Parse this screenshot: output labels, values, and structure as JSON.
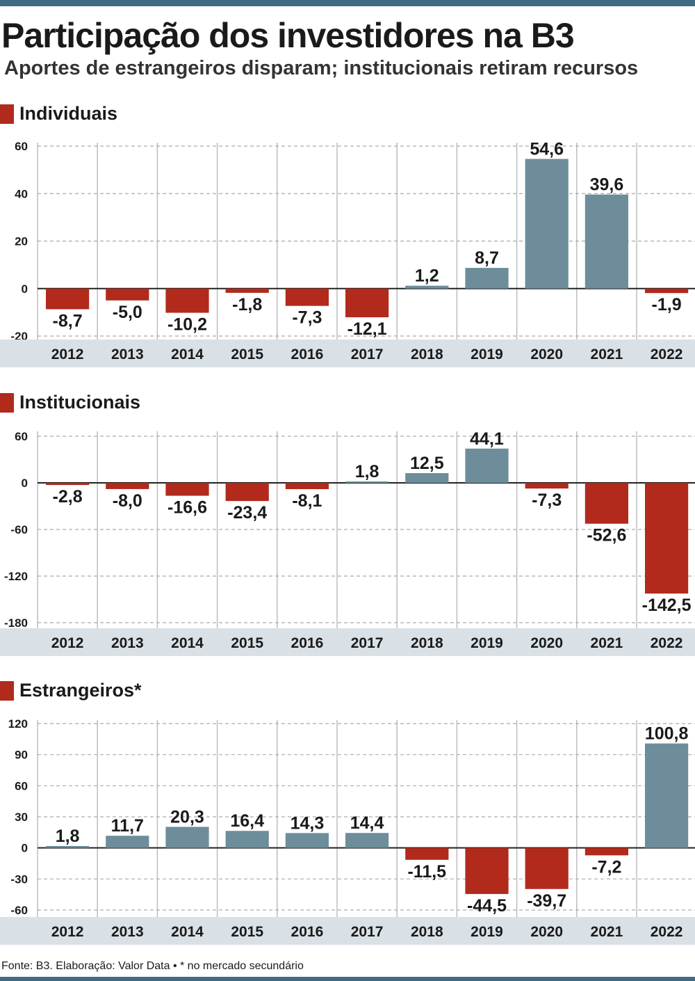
{
  "header": {
    "title": "Participação dos investidores na B3",
    "subtitle": "Aportes de estrangeiros disparam; institucionais retiram recursos"
  },
  "colors": {
    "positive": "#6d8d9b",
    "negative": "#b12a1c",
    "band": "#d9e1e7",
    "accent": "#3f6c84"
  },
  "footer": {
    "source": "Fonte: B3. Elaboração: Valor Data • * no mercado secundário"
  },
  "chart_data": [
    {
      "type": "bar",
      "title": "Individuais",
      "categories": [
        "2012",
        "2013",
        "2014",
        "2015",
        "2016",
        "2017",
        "2018",
        "2019",
        "2020",
        "2021",
        "2022"
      ],
      "values": [
        -8.7,
        -5.0,
        -10.2,
        -1.8,
        -7.3,
        -12.1,
        1.2,
        8.7,
        54.6,
        39.6,
        -1.9
      ],
      "value_labels": [
        "-8,7",
        "-5,0",
        "-10,2",
        "-1,8",
        "-7,3",
        "-12,1",
        "1,2",
        "8,7",
        "54,6",
        "39,6",
        "-1,9"
      ],
      "yticks": [
        60,
        40,
        20,
        0,
        -20
      ],
      "ylim": [
        -20,
        60
      ]
    },
    {
      "type": "bar",
      "title": "Institucionais",
      "categories": [
        "2012",
        "2013",
        "2014",
        "2015",
        "2016",
        "2017",
        "2018",
        "2019",
        "2020",
        "2021",
        "2022"
      ],
      "values": [
        -2.8,
        -8.0,
        -16.6,
        -23.4,
        -8.1,
        1.8,
        12.5,
        44.1,
        -7.3,
        -52.6,
        -142.5
      ],
      "value_labels": [
        "-2,8",
        "-8,0",
        "-16,6",
        "-23,4",
        "-8,1",
        "1,8",
        "12,5",
        "44,1",
        "-7,3",
        "-52,6",
        "-142,5"
      ],
      "yticks": [
        60,
        0,
        -60,
        -120,
        -180
      ],
      "ylim": [
        -180,
        60
      ]
    },
    {
      "type": "bar",
      "title": "Estrangeiros*",
      "categories": [
        "2012",
        "2013",
        "2014",
        "2015",
        "2016",
        "2017",
        "2018",
        "2019",
        "2020",
        "2021",
        "2022"
      ],
      "values": [
        1.8,
        11.7,
        20.3,
        16.4,
        14.3,
        14.4,
        -11.5,
        -44.5,
        -39.7,
        -7.2,
        100.8
      ],
      "value_labels": [
        "1,8",
        "11,7",
        "20,3",
        "16,4",
        "14,3",
        "14,4",
        "-11,5",
        "-44,5",
        "-39,7",
        "-7,2",
        "100,8"
      ],
      "yticks": [
        120,
        90,
        60,
        30,
        0,
        -30,
        -60
      ],
      "ylim": [
        -60,
        120
      ]
    }
  ]
}
